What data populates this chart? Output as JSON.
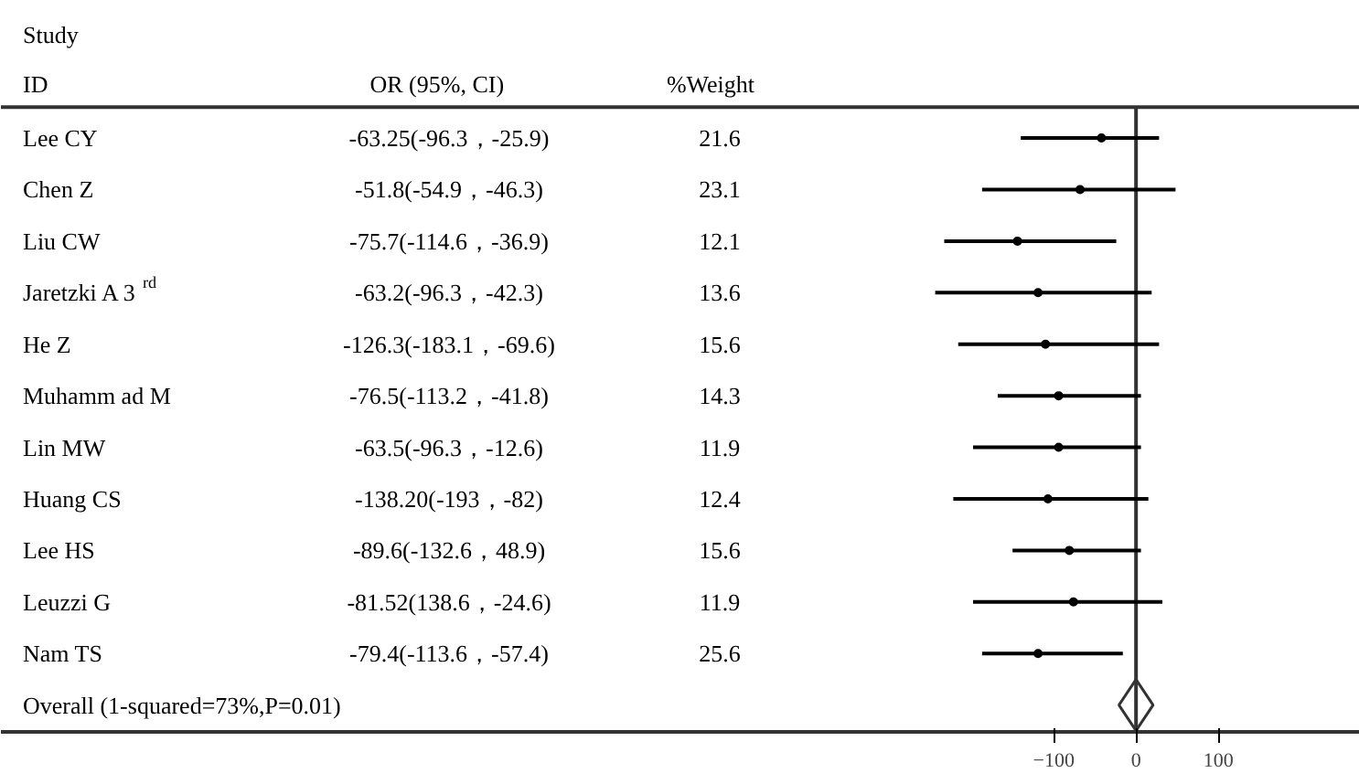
{
  "chart_data": {
    "type": "scatter",
    "orientation": "horizontal",
    "categories": [
      "Lee CY",
      "Chen Z",
      "Liu CW",
      "Jaretzki A 3$^{rd}$",
      "He Z",
      "Muhamm ad M",
      "Lin MW",
      "Huang CS",
      "Lee HS",
      "Leuzzi G",
      "Nam TS",
      "Overall (1-squared=73%,P=0.01)"
    ],
    "series": [
      {
        "color": "#000000",
        "marker": "circle",
        "values": [
          -42,
          -68,
          -144,
          -119,
          -110,
          -94,
          -94,
          -107,
          -81,
          -76,
          -119,
          null
        ],
        "errors": [
          [
            -140,
            28
          ],
          [
            -187,
            48
          ],
          [
            -233,
            -24
          ],
          [
            -244,
            19
          ],
          [
            -216,
            28
          ],
          [
            -168,
            6
          ],
          [
            -198,
            6
          ],
          [
            -222,
            15
          ],
          [
            -150,
            6
          ],
          [
            -198,
            32
          ],
          [
            -187,
            -16
          ],
          null
        ]
      },
      {
        "color": "#333333",
        "marker": "diamond",
        "values": [
          null,
          null,
          null,
          null,
          null,
          null,
          null,
          null,
          null,
          null,
          null,
          0
        ]
      }
    ],
    "annotations": [
      "Study",
      "ID",
      "OR (95%,  CI)",
      "%Weight",
      "-63.25(-96.3，-25.9)",
      "-51.8(-54.9，-46.3)",
      "-75.7(-114.6，-36.9)",
      "-63.2(-96.3，-42.3)",
      "-126.3(-183.1，-69.6)",
      "-76.5(-113.2，-41.8)",
      "-63.5(-96.3，-12.6)",
      "-138.20(-193，-82)",
      "-89.6(-132.6，48.9)",
      "-81.52(138.6，-24.6)",
      "-79.4(-113.6，-57.4)",
      "21.6",
      "23.1",
      "12.1",
      "13.6",
      "15.6",
      "14.3",
      "11.9",
      "12.4",
      "15.6",
      "11.9",
      "25.6"
    ],
    "ref_lines": [
      {
        "axis": "x",
        "value": 0,
        "color": "#333333"
      }
    ],
    "xlim": [
      -1379,
      272
    ],
    "xticks": [
      -100,
      0,
      100
    ],
    "grid": false
  }
}
